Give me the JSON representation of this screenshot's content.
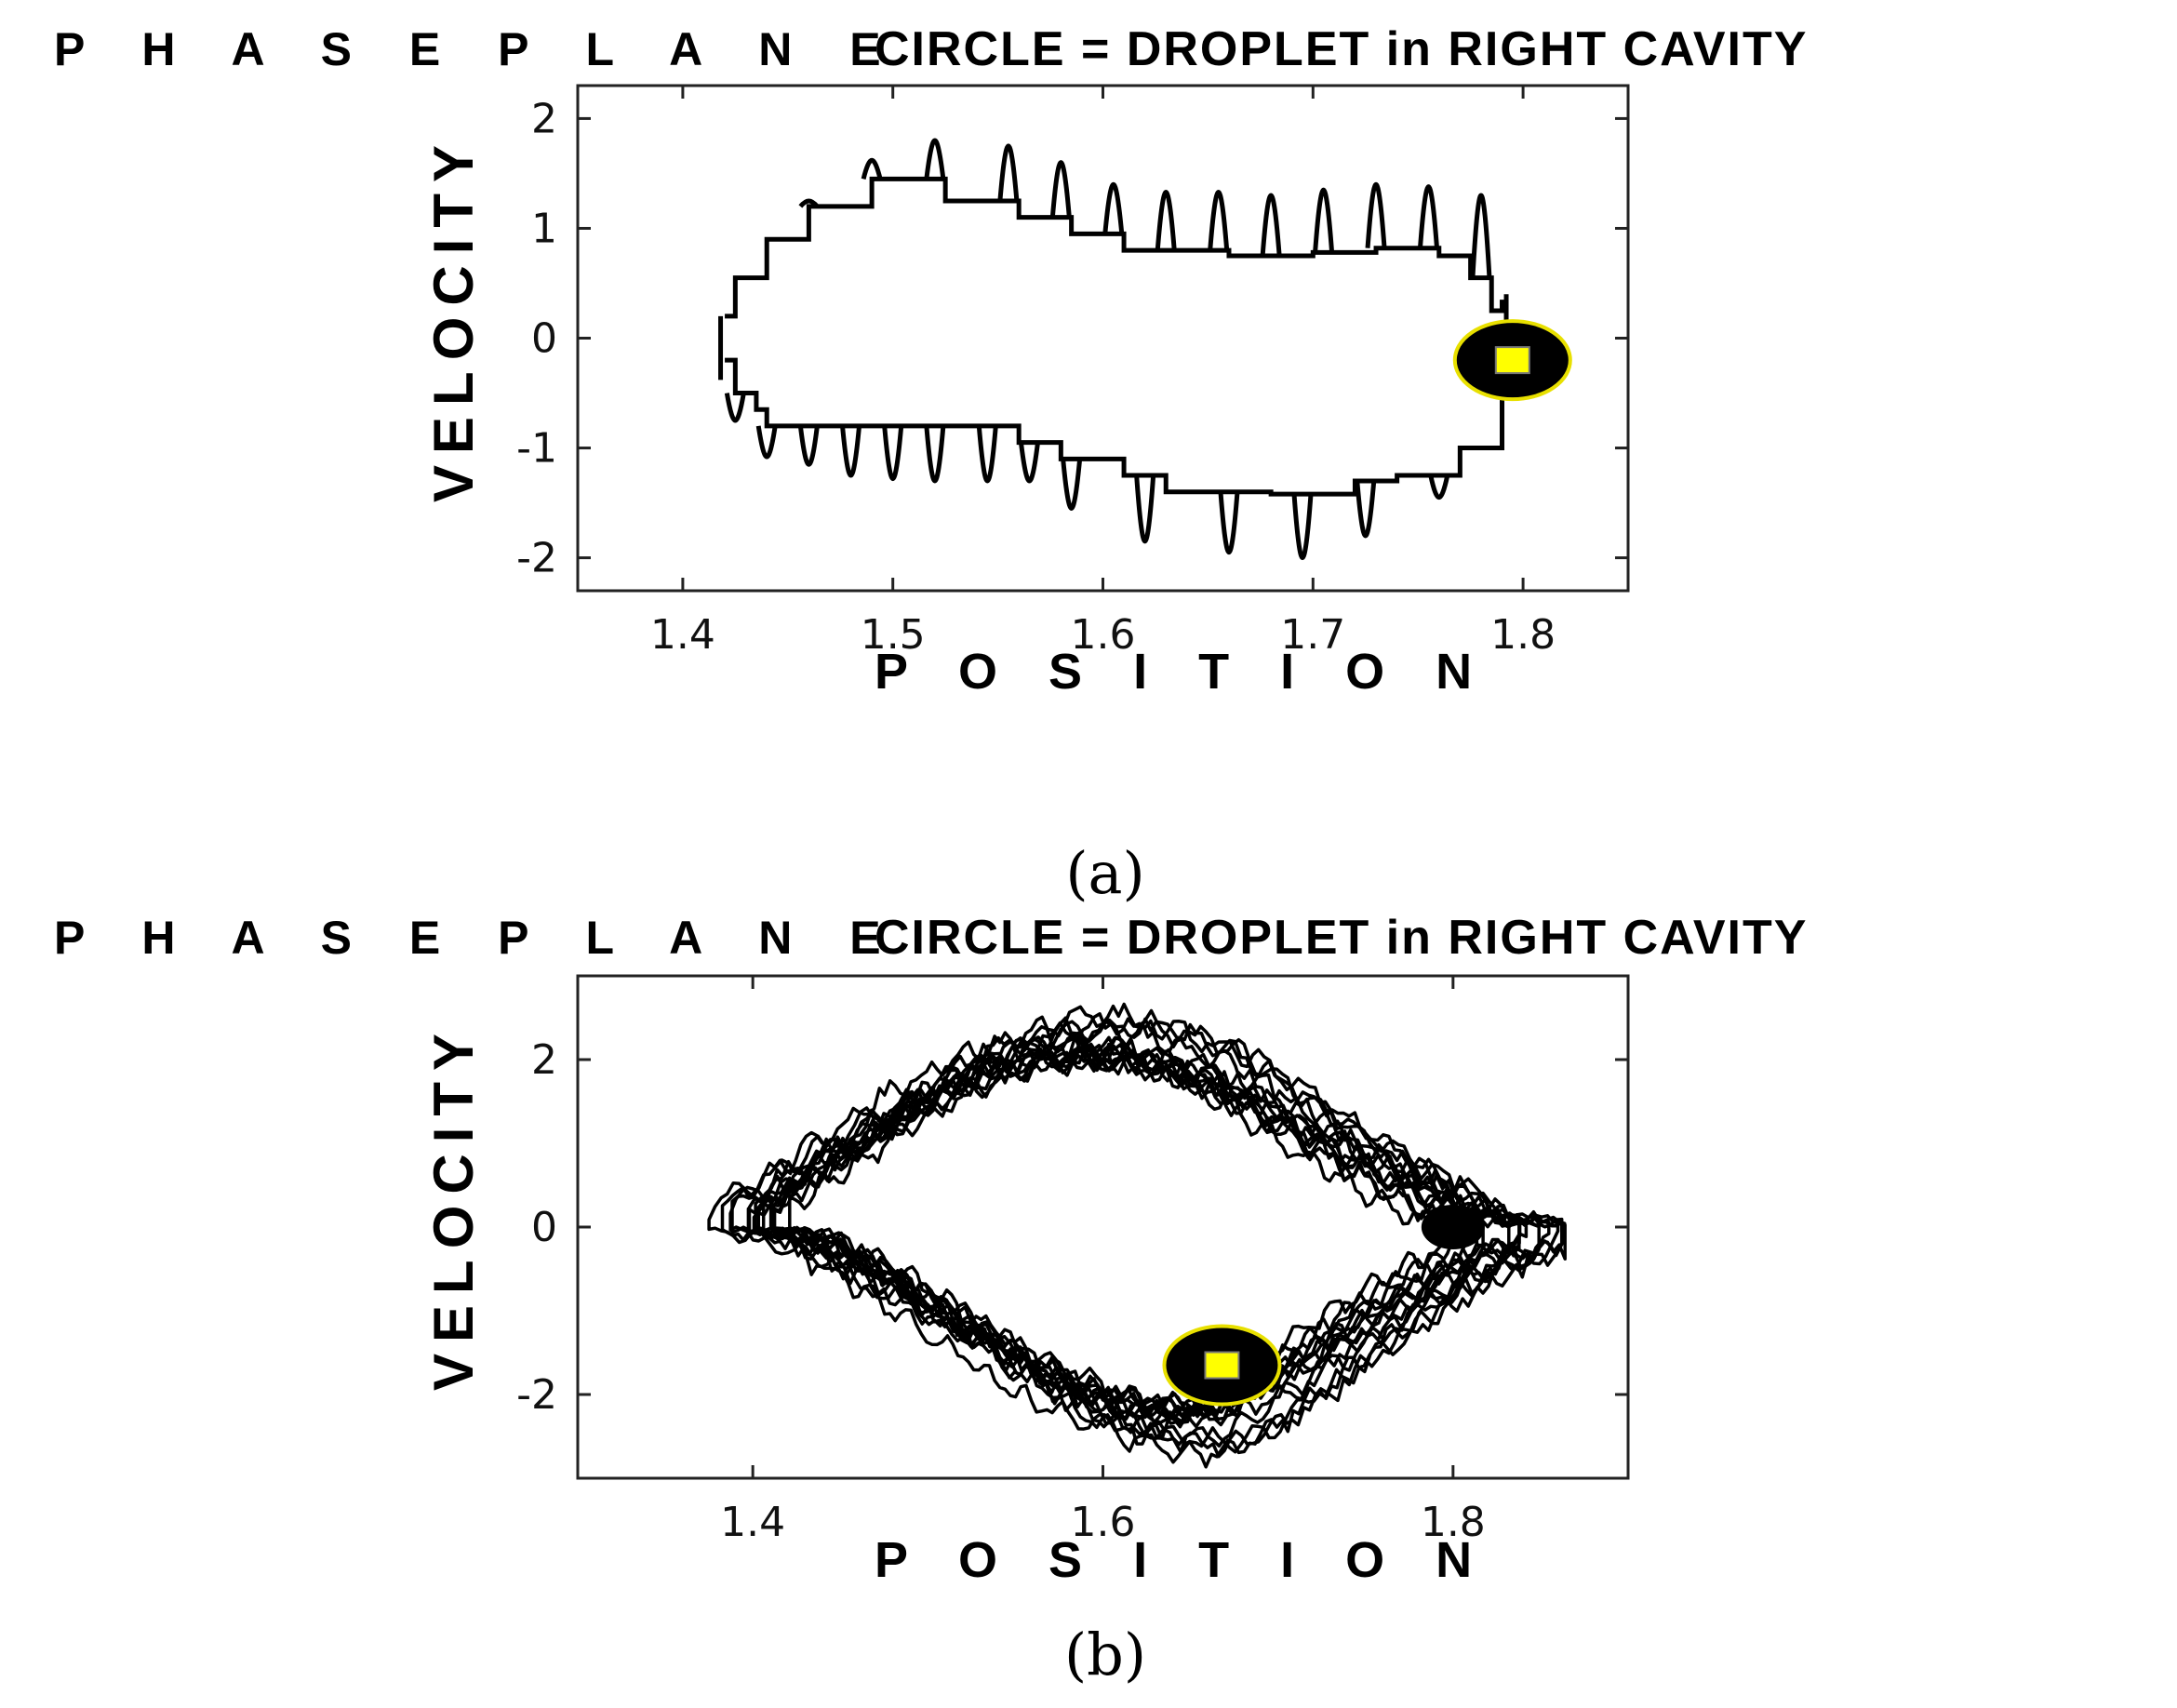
{
  "chart_data": [
    {
      "type": "line",
      "panel": "(a)",
      "title": "P H A S E   P L A N E",
      "subtitle": "CIRCLE = DROPLET in RIGHT CAVITY",
      "xlabel": "P O S I T I O N",
      "ylabel": "VELOCITY",
      "xlim": [
        1.35,
        1.85
      ],
      "ylim": [
        -2.3,
        2.3
      ],
      "xticks": [
        1.4,
        1.5,
        1.6,
        1.7,
        1.8
      ],
      "xtick_labels": [
        "1.4",
        "1.5",
        "1.6",
        "1.7",
        "1.8"
      ],
      "yticks": [
        -2,
        -1,
        0,
        1,
        2
      ],
      "ytick_labels": [
        "-2",
        "-1",
        "0",
        "1",
        "2"
      ],
      "grid": false,
      "series": [
        {
          "upper": [
            [
              1.42,
              0.2
            ],
            [
              1.425,
              0.55
            ],
            [
              1.435,
              0.55
            ],
            [
              1.44,
              0.9
            ],
            [
              1.455,
              0.9
            ],
            [
              1.46,
              1.2
            ],
            [
              1.485,
              1.2
            ],
            [
              1.49,
              1.45
            ],
            [
              1.52,
              1.45
            ],
            [
              1.525,
              1.25
            ],
            [
              1.555,
              1.25
            ],
            [
              1.56,
              1.1
            ],
            [
              1.58,
              1.1
            ],
            [
              1.585,
              0.95
            ],
            [
              1.6,
              0.95
            ],
            [
              1.61,
              0.8
            ],
            [
              1.66,
              0.75
            ],
            [
              1.7,
              0.78
            ],
            [
              1.73,
              0.82
            ],
            [
              1.76,
              0.75
            ],
            [
              1.775,
              0.55
            ],
            [
              1.785,
              0.25
            ],
            [
              1.79,
              0.35
            ]
          ],
          "upper_spikes": [
            [
              1.46,
              1.25
            ],
            [
              1.49,
              1.62
            ],
            [
              1.52,
              1.8
            ],
            [
              1.555,
              1.75
            ],
            [
              1.58,
              1.6
            ],
            [
              1.605,
              1.4
            ],
            [
              1.63,
              1.33
            ],
            [
              1.655,
              1.33
            ],
            [
              1.68,
              1.3
            ],
            [
              1.705,
              1.35
            ],
            [
              1.73,
              1.4
            ],
            [
              1.755,
              1.38
            ],
            [
              1.78,
              1.3
            ]
          ],
          "lower": [
            [
              1.42,
              -0.2
            ],
            [
              1.425,
              -0.5
            ],
            [
              1.435,
              -0.65
            ],
            [
              1.44,
              -0.8
            ],
            [
              1.47,
              -0.8
            ],
            [
              1.54,
              -0.8
            ],
            [
              1.56,
              -0.95
            ],
            [
              1.58,
              -1.1
            ],
            [
              1.61,
              -1.25
            ],
            [
              1.63,
              -1.4
            ],
            [
              1.68,
              -1.42
            ],
            [
              1.72,
              -1.3
            ],
            [
              1.74,
              -1.25
            ],
            [
              1.77,
              -1.0
            ],
            [
              1.79,
              -0.5
            ],
            [
              1.795,
              -0.25
            ]
          ],
          "lower_spikes": [
            [
              1.425,
              -0.75
            ],
            [
              1.44,
              -1.08
            ],
            [
              1.46,
              -1.15
            ],
            [
              1.48,
              -1.25
            ],
            [
              1.5,
              -1.28
            ],
            [
              1.52,
              -1.3
            ],
            [
              1.545,
              -1.3
            ],
            [
              1.565,
              -1.3
            ],
            [
              1.585,
              -1.55
            ],
            [
              1.62,
              -1.85
            ],
            [
              1.66,
              -1.95
            ],
            [
              1.695,
              -2.0
            ],
            [
              1.725,
              -1.8
            ],
            [
              1.76,
              -1.45
            ]
          ]
        }
      ],
      "droplet": {
        "x": 1.795,
        "y": -0.2,
        "shape": "circle",
        "fill": "#000000",
        "outline": "#e8e000",
        "marker": "yellow square"
      }
    },
    {
      "type": "line",
      "panel": "(b)",
      "title": "P H A S E   P L A N E",
      "subtitle": "CIRCLE = DROPLET in RIGHT CAVITY",
      "xlabel": "P O S I T I O N",
      "ylabel": "VELOCITY",
      "xlim": [
        1.3,
        1.9
      ],
      "ylim": [
        -3,
        3
      ],
      "xticks": [
        1.4,
        1.6,
        1.8
      ],
      "xtick_labels": [
        "1.4",
        "1.6",
        "1.8"
      ],
      "yticks": [
        -2,
        0,
        2
      ],
      "ytick_labels": [
        "-2",
        "0",
        "2"
      ],
      "grid": false,
      "series": [
        {
          "pattern": "dense overlapping orbits",
          "upper_envelope": [
            [
              1.38,
              0.5
            ],
            [
              1.42,
              1.3
            ],
            [
              1.5,
              2.3
            ],
            [
              1.55,
              2.3
            ],
            [
              1.6,
              1.9
            ],
            [
              1.7,
              1.5
            ],
            [
              1.8,
              1.3
            ],
            [
              1.84,
              0.8
            ],
            [
              1.86,
              0.3
            ]
          ],
          "lower_envelope": [
            [
              1.38,
              -0.6
            ],
            [
              1.42,
              -1.3
            ],
            [
              1.5,
              -1.5
            ],
            [
              1.6,
              -1.9
            ],
            [
              1.65,
              -2.5
            ],
            [
              1.7,
              -2.6
            ],
            [
              1.75,
              -2.3
            ],
            [
              1.8,
              -1.8
            ],
            [
              1.84,
              -1.0
            ],
            [
              1.86,
              -0.3
            ]
          ]
        }
      ],
      "droplet": {
        "x": 1.668,
        "y": -1.65,
        "shape": "circle",
        "fill": "#000000",
        "outline": "#e8e000",
        "marker": "yellow square"
      },
      "secondary_marker": {
        "x": 1.8,
        "y": 0.0,
        "fill": "#000000"
      }
    }
  ],
  "captions": [
    "(a)",
    "(b)"
  ],
  "colors": {
    "trajectory": "#000000",
    "droplet_outline": "#e8e000",
    "droplet_marker": "#ffff00"
  }
}
